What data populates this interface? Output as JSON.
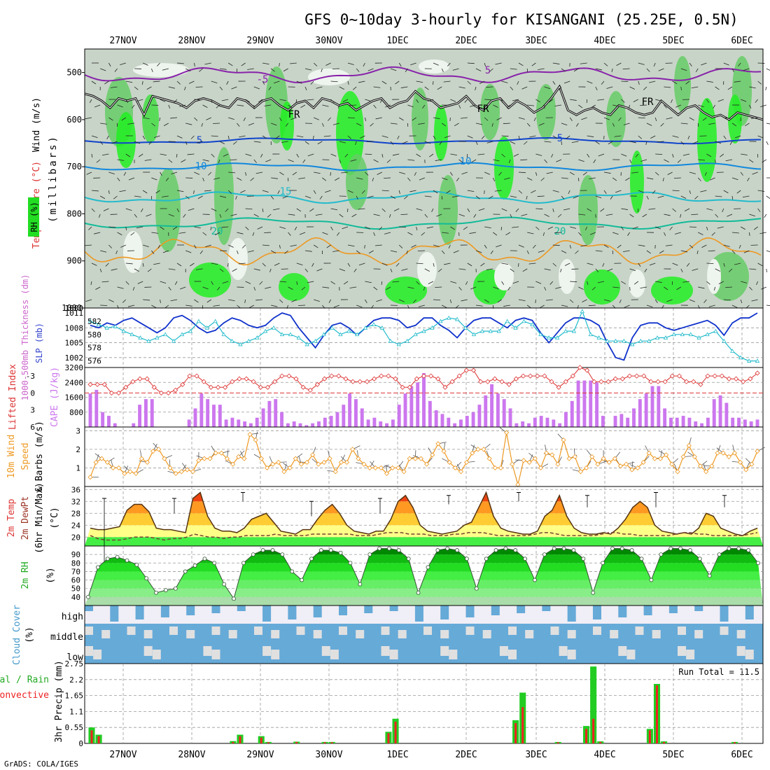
{
  "title": "GFS 0~10day 3-hourly for KISANGANI (25.25E, 0.5N)",
  "footer": "GrADS: COLA/IGES",
  "run_total_label": "Run Total = 11.5",
  "date_labels": [
    "27NOV",
    "28NOV",
    "29NOV",
    "30NOV",
    "1DEC",
    "2DEC",
    "3DEC",
    "4DEC",
    "5DEC",
    "6DEC"
  ],
  "colors": {
    "rh_green": "#00ff00",
    "grid": "#999999",
    "slp": "#1133cc",
    "thick": "#22bbcc",
    "cape": "#cc77ee",
    "li": "#dd3333",
    "wind": "#ee9922",
    "precip": "#22cc22",
    "conv": "#ee2222",
    "cloud": "#66aad8"
  },
  "chart_data": [
    {
      "type": "heatmap",
      "name": "upper-air",
      "ylabel": "(millibars)",
      "yticks": [
        "500",
        "600",
        "700",
        "800",
        "900",
        "1000"
      ],
      "side_labels": {
        "wind": "Wind (m/s)",
        "temp": "Temperature (°C)",
        "rh": "RH (%)"
      },
      "contour_labels": [
        "-5",
        "5",
        "FR",
        "FR",
        "FR",
        "5",
        "5",
        "10",
        "10",
        "15",
        "20",
        "20"
      ],
      "freezing_level_mb": [
        545,
        550,
        560,
        575,
        555,
        560,
        555,
        590,
        550,
        555,
        560,
        565,
        575,
        560,
        555,
        560,
        570,
        575,
        555,
        560,
        575,
        560,
        555,
        570,
        580,
        565,
        560,
        575,
        555,
        560,
        570,
        565,
        580,
        570,
        560,
        555,
        575,
        565,
        560,
        540,
        555,
        560,
        575,
        570,
        565,
        550,
        570,
        580,
        560,
        555,
        575,
        560,
        570,
        585,
        575,
        555,
        530,
        580,
        590,
        580,
        575,
        585,
        590,
        570,
        575,
        585,
        590,
        585,
        560,
        575,
        590,
        575,
        570,
        585,
        595,
        590,
        600,
        585,
        590,
        595,
        600
      ]
    },
    {
      "type": "line",
      "name": "thickness-slp",
      "ylabel_left": "1000-500mb Thickness (dm)",
      "ylabel_right": "SLP (mb)",
      "yticks_left": [
        "576",
        "578",
        "580",
        "582"
      ],
      "yticks_right": [
        "1002",
        "1005",
        "1008",
        "1011"
      ],
      "slp_mb": [
        1008.5,
        1008,
        1009,
        1008.5,
        1009.5,
        1010,
        1009,
        1008,
        1007,
        1008,
        1010,
        1010.5,
        1009.5,
        1008,
        1007,
        1007.5,
        1009,
        1010,
        1009.5,
        1008.5,
        1008,
        1008.5,
        1010,
        1011,
        1010.5,
        1008,
        1006,
        1004,
        1006.5,
        1008.5,
        1009,
        1008,
        1006.5,
        1008,
        1009.5,
        1010,
        1010,
        1009.5,
        1008,
        1008.5,
        1010,
        1010,
        1008.5,
        1007.5,
        1006,
        1008,
        1009.5,
        1010,
        1010,
        1009,
        1008,
        1009.5,
        1010,
        1009.5,
        1007,
        1005,
        1007,
        1009,
        1010,
        1010,
        1009.5,
        1008.5,
        1005,
        1002,
        1001.5,
        1006,
        1008.5,
        1009,
        1009,
        1008,
        1007.5,
        1008,
        1008.5,
        1009,
        1009.5,
        1008.5,
        1006.5,
        1009,
        1010,
        1010,
        1011
      ],
      "thickness_dm": [
        582,
        581.5,
        581,
        581.2,
        580.5,
        580,
        579.5,
        579,
        579.5,
        580,
        579,
        580,
        580.5,
        582,
        581,
        582,
        580,
        579,
        578.5,
        579,
        579.5,
        580.5,
        581,
        580,
        580,
        579.5,
        578.5,
        579,
        580,
        581,
        580,
        580.5,
        580,
        581,
        581.5,
        581,
        579,
        578.5,
        579,
        580,
        580.5,
        581,
        582,
        582.5,
        582.3,
        581,
        580,
        580.5,
        580.5,
        580.5,
        582,
        581,
        582,
        581.5,
        580,
        579.5,
        579.5,
        580.5,
        580.5,
        583.5,
        580,
        579.5,
        579,
        579,
        579,
        578.5,
        579,
        579,
        579.5,
        579.5,
        580,
        580,
        580,
        579.5,
        580,
        580.5,
        579,
        577.5,
        576.5,
        576,
        576
      ]
    },
    {
      "type": "bar",
      "name": "cape-li",
      "ylabel_left": "Lifted Index",
      "ylabel_right": "CAPE (J/kg)",
      "yticks_left": [
        "-3",
        "0",
        "3",
        "6"
      ],
      "yticks_right": [
        "800",
        "1600",
        "2400",
        "3200"
      ],
      "cape_jkg": [
        1800,
        2000,
        800,
        600,
        200,
        0,
        0,
        200,
        1200,
        1500,
        1500,
        0,
        0,
        0,
        0,
        0,
        400,
        1000,
        1800,
        1500,
        1200,
        1200,
        400,
        500,
        400,
        300,
        200,
        500,
        1000,
        1400,
        1500,
        800,
        200,
        300,
        200,
        100,
        200,
        300,
        500,
        600,
        800,
        1200,
        1800,
        1500,
        1000,
        400,
        500,
        300,
        200,
        400,
        1200,
        1800,
        2200,
        2400,
        2900,
        1400,
        900,
        700,
        500,
        200,
        400,
        600,
        800,
        1200,
        1700,
        2300,
        1800,
        1500,
        1000,
        200,
        300,
        200,
        500,
        600,
        500,
        400,
        200,
        800,
        1400,
        2500,
        2500,
        2500,
        2400,
        600,
        0,
        600,
        700,
        500,
        1000,
        1500,
        1800,
        2200,
        2200,
        1000,
        500,
        500,
        600,
        500,
        300,
        200,
        500,
        1500,
        1700,
        1300,
        500,
        500,
        400,
        300,
        400
      ],
      "li": [
        -1.5,
        -1.5,
        -1.5,
        0,
        0,
        -1,
        -2,
        -2.5,
        -2.5,
        -1,
        0,
        0,
        -0.5,
        -1.5,
        -3,
        -3,
        -2,
        -1,
        -1,
        -1,
        -2,
        -2.5,
        -2.5,
        -2,
        -1,
        -1,
        -2,
        -3,
        -3,
        -2.5,
        -1,
        -0.5,
        -1.5,
        -2.5,
        -3,
        -3,
        -2.5,
        -2,
        -2,
        -2,
        -2.5,
        -3,
        -3,
        -2.5,
        -1,
        -1,
        -2.5,
        -3,
        -3,
        -2.5,
        -1,
        -2,
        -3,
        -4,
        -4,
        -2,
        -2,
        -2.5,
        -2,
        -1.5,
        -2.5,
        -3,
        -3,
        -3,
        -3,
        -2,
        -1,
        -2,
        -3,
        -4.5,
        -4,
        -2,
        -2,
        -2,
        -2.5,
        -2.5,
        -3,
        -3,
        -3,
        -2,
        -2,
        -2,
        -3,
        -3,
        -2,
        -2,
        -1.5,
        -3,
        -3,
        -3,
        -2.5,
        -2.5,
        -2,
        -2.5,
        -3.5
      ]
    },
    {
      "type": "line",
      "name": "wind-10m",
      "ylabel": "10m Wind Speed & Barbs (m/s)",
      "yticks": [
        "1",
        "2",
        "3"
      ],
      "speed_ms": [
        0.5,
        1.3,
        1.5,
        1.3,
        1,
        1,
        0.7,
        0.8,
        0.7,
        1.5,
        1.3,
        1.9,
        2,
        1.5,
        1,
        0.7,
        0.8,
        0.9,
        0.8,
        1.4,
        1.5,
        1.5,
        1.8,
        1.8,
        1.5,
        1.2,
        1.6,
        1.5,
        2.8,
        2.5,
        1.5,
        1,
        1.2,
        1.3,
        0.8,
        1,
        1.5,
        1.2,
        1.3,
        1.7,
        1.2,
        1.3,
        1.5,
        0.8,
        1.3,
        1.3,
        2,
        1.5,
        1.2,
        1,
        1,
        1,
        0.7,
        1,
        1,
        0.8,
        1.5,
        1.5,
        1.5,
        1.2,
        1.7,
        2.3,
        1.9,
        1.3,
        1,
        0.8,
        1.3,
        1.8,
        2,
        2,
        1.5,
        1,
        1,
        2.9,
        1.2,
        0.1,
        1.4,
        1.3,
        1.5,
        1,
        1.8,
        1.7,
        1.2,
        2.5,
        1.5,
        1.6,
        0.8,
        1,
        1.6,
        1.2,
        1.5,
        1.3,
        1.5,
        1.1,
        1.2,
        0.9,
        1,
        1.3,
        1.8,
        1.5,
        1.5,
        1.7,
        1.2,
        0.8,
        1.6,
        2.2,
        1.6,
        1.1,
        0.8,
        1.1,
        1.8,
        1.8,
        1.6,
        1.8,
        1.3,
        0.9,
        1.2,
        1.9
      ]
    },
    {
      "type": "area",
      "name": "temp-2m",
      "ylabel": "2m Temp / 2m DewPt (6hr Min/Max) (°C)",
      "yticks": [
        "20",
        "24",
        "28",
        "32",
        "36"
      ],
      "temp_c": [
        23,
        22.5,
        22.5,
        23,
        23.5,
        29,
        31,
        31,
        28.5,
        23,
        22.5,
        22.5,
        22,
        21.5,
        33,
        35,
        27,
        23,
        22,
        22,
        21.5,
        23,
        26,
        27,
        28,
        25,
        22,
        21.5,
        21,
        22.5,
        22.5,
        26,
        29,
        31,
        28,
        24,
        22,
        21.5,
        21,
        22,
        22,
        26,
        32,
        34,
        30,
        24,
        22,
        21.5,
        21,
        21.5,
        22,
        24,
        25,
        30,
        35,
        27,
        23,
        22,
        21.5,
        21,
        21,
        22,
        27,
        29,
        34,
        27,
        23,
        21.5,
        21,
        21,
        21.5,
        21,
        23,
        26,
        30,
        32,
        30,
        24,
        22,
        21.5,
        21,
        21.5,
        21,
        23,
        28,
        27,
        23,
        22,
        21,
        20.5,
        22,
        23
      ],
      "dewpt_c": [
        20.5,
        19.5,
        19,
        19,
        19,
        19.5,
        20,
        20,
        20,
        19.5,
        19,
        19.5,
        19.5,
        20,
        21,
        20.5,
        20,
        20,
        19.5,
        20,
        20,
        20.5,
        20.5,
        20.5,
        20.5,
        21,
        20.5,
        20.5,
        20.5,
        20.5,
        21,
        21,
        21,
        21,
        21,
        21,
        20.5,
        20.5,
        20.5,
        21,
        21.5,
        21.5,
        21.5,
        21,
        21,
        21,
        20.5,
        20.5,
        20.5,
        21,
        21,
        21.5,
        21.5,
        21.5,
        21,
        20.5,
        20.5,
        20.5,
        20.5,
        20.5,
        21,
        21.5,
        21.5,
        21,
        20.5,
        20.5,
        20.5,
        20.5,
        20.5,
        21,
        21.5,
        21.5,
        21,
        21,
        20.5,
        20.5,
        20.5,
        20.5,
        20.5,
        21,
        21.5,
        21.5,
        21,
        21,
        20.5,
        20.5,
        20.5,
        20.5,
        20.5,
        21,
        21.5
      ],
      "max_bars": [
        [
          33,
          10
        ],
        [
          33,
          28
        ],
        [
          35,
          32
        ],
        [
          32,
          27
        ],
        [
          33,
          28
        ],
        [
          34,
          31
        ],
        [
          35,
          32
        ],
        [
          34,
          30
        ],
        [
          35,
          30
        ],
        [
          34,
          30
        ]
      ]
    },
    {
      "type": "area",
      "name": "rh-2m",
      "ylabel": "2m RH (%)",
      "yticks": [
        "40",
        "50",
        "60",
        "70",
        "80",
        "90"
      ],
      "rh_pct": [
        40,
        75,
        85,
        87,
        83,
        78,
        62,
        45,
        48,
        50,
        70,
        77,
        85,
        80,
        55,
        38,
        80,
        90,
        95,
        95,
        90,
        70,
        60,
        85,
        95,
        95,
        92,
        80,
        55,
        90,
        97,
        97,
        95,
        85,
        45,
        75,
        95,
        97,
        95,
        85,
        50,
        85,
        95,
        97,
        95,
        85,
        60,
        90,
        97,
        97,
        95,
        85,
        45,
        80,
        97,
        97,
        95,
        85,
        60,
        90,
        97,
        97,
        95,
        85,
        65,
        90,
        97,
        97,
        95,
        80
      ]
    },
    {
      "type": "bar",
      "name": "cloud-cover",
      "ylabel": "Cloud Cover (%)",
      "rows": [
        "high",
        "middle",
        "low"
      ]
    },
    {
      "type": "bar",
      "name": "precip",
      "ylabel": "3hr Precip (mm)",
      "side_labels": {
        "total": "Total / Rain",
        "conv": "Convective"
      },
      "yticks": [
        "0",
        "0.55",
        "1.1",
        "1.65",
        "2.2",
        "2.75"
      ],
      "bars": [
        {
          "i": 0,
          "total": 0.55,
          "conv": 0.45
        },
        {
          "i": 1,
          "total": 0.3,
          "conv": 0.25
        },
        {
          "i": 20,
          "total": 0.08,
          "conv": 0.05
        },
        {
          "i": 21,
          "total": 0.3,
          "conv": 0.25
        },
        {
          "i": 24,
          "total": 0.25,
          "conv": 0.2
        },
        {
          "i": 25,
          "total": 0.05,
          "conv": 0.04
        },
        {
          "i": 29,
          "total": 0.06,
          "conv": 0.05
        },
        {
          "i": 33,
          "total": 0.05,
          "conv": 0.04
        },
        {
          "i": 34,
          "total": 0.05,
          "conv": 0.04
        },
        {
          "i": 42,
          "total": 0.4,
          "conv": 0.35
        },
        {
          "i": 43,
          "total": 0.85,
          "conv": 0.75
        },
        {
          "i": 60,
          "total": 0.8,
          "conv": 0.7
        },
        {
          "i": 61,
          "total": 1.75,
          "conv": 1.25
        },
        {
          "i": 66,
          "total": 0.05,
          "conv": 0.04
        },
        {
          "i": 70,
          "total": 0.6,
          "conv": 0.5
        },
        {
          "i": 71,
          "total": 2.65,
          "conv": 0.85
        },
        {
          "i": 72,
          "total": 0.07,
          "conv": 0.05
        },
        {
          "i": 79,
          "total": 0.5,
          "conv": 0.45
        },
        {
          "i": 80,
          "total": 2.05,
          "conv": 2.0
        },
        {
          "i": 81,
          "total": 0.07,
          "conv": 0.05
        },
        {
          "i": 91,
          "total": 0.05,
          "conv": 0.04
        }
      ]
    }
  ]
}
